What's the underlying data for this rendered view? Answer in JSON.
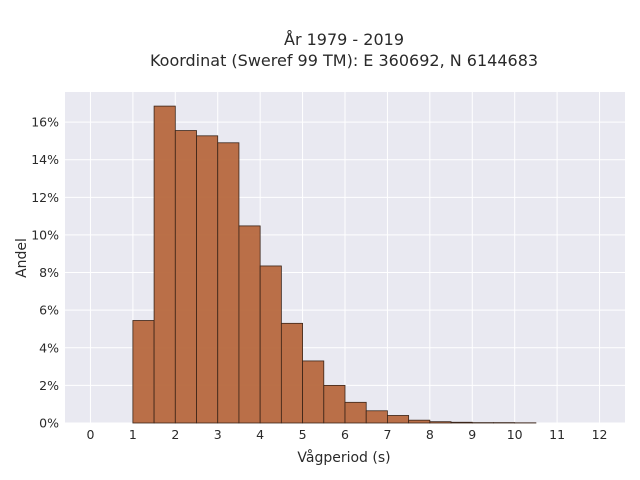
{
  "chart_data": {
    "type": "bar",
    "title_lines": [
      "År 1979 - 2019",
      "Koordinat (Sweref 99 TM): E 360692, N 6144683"
    ],
    "xlabel": "Vågperiod (s)",
    "ylabel": "Andel",
    "bin_width": 0.5,
    "bins": [
      {
        "start": 1.0,
        "value": 0.0545
      },
      {
        "start": 1.5,
        "value": 0.1685
      },
      {
        "start": 2.0,
        "value": 0.1555
      },
      {
        "start": 2.5,
        "value": 0.1527
      },
      {
        "start": 3.0,
        "value": 0.149
      },
      {
        "start": 3.5,
        "value": 0.1048
      },
      {
        "start": 4.0,
        "value": 0.0835
      },
      {
        "start": 4.5,
        "value": 0.053
      },
      {
        "start": 5.0,
        "value": 0.033
      },
      {
        "start": 5.5,
        "value": 0.02
      },
      {
        "start": 6.0,
        "value": 0.011
      },
      {
        "start": 6.5,
        "value": 0.0065
      },
      {
        "start": 7.0,
        "value": 0.004
      },
      {
        "start": 7.5,
        "value": 0.0015
      },
      {
        "start": 8.0,
        "value": 0.0007
      },
      {
        "start": 8.5,
        "value": 0.0004
      },
      {
        "start": 9.0,
        "value": 0.0002
      },
      {
        "start": 9.5,
        "value": 0.0002
      },
      {
        "start": 10.0,
        "value": 0.0001
      }
    ],
    "xlim": [
      -0.6,
      12.6
    ],
    "ylim": [
      0,
      0.176
    ],
    "xticks": [
      0,
      1,
      2,
      3,
      4,
      5,
      6,
      7,
      8,
      9,
      10,
      11,
      12
    ],
    "xtick_labels": [
      "0",
      "1",
      "2",
      "3",
      "4",
      "5",
      "6",
      "7",
      "8",
      "9",
      "10",
      "11",
      "12"
    ],
    "yticks": [
      0,
      0.02,
      0.04,
      0.06,
      0.08,
      0.1,
      0.12,
      0.14,
      0.16
    ],
    "ytick_labels": [
      "0%",
      "2%",
      "4%",
      "6%",
      "8%",
      "10%",
      "12%",
      "14%",
      "16%"
    ],
    "grid": true,
    "colors": {
      "bar_fill": "#b7683e",
      "bar_edge": "#3a2418",
      "plot_background": "#e9e9f1",
      "grid": "#ffffff"
    }
  }
}
